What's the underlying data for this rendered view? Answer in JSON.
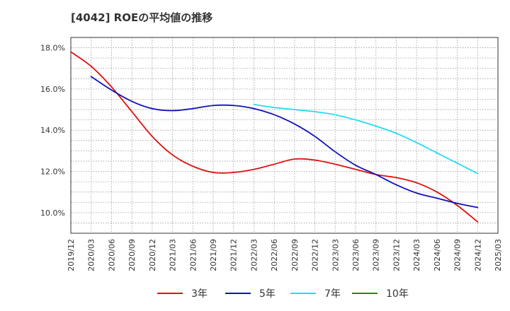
{
  "chart_data": {
    "type": "line",
    "title": "[4042]  ROEの平均値の推移",
    "xlabel": "",
    "ylabel": "",
    "ylim": [
      9.0,
      18.5
    ],
    "y_ticks": [
      10.0,
      12.0,
      14.0,
      16.0,
      18.0
    ],
    "y_tick_labels": [
      "10.0%",
      "12.0%",
      "14.0%",
      "16.0%",
      "18.0%"
    ],
    "x_tick_labels": [
      "2019/12",
      "2020/03",
      "2020/06",
      "2020/09",
      "2020/12",
      "2021/03",
      "2021/06",
      "2021/09",
      "2021/12",
      "2022/03",
      "2022/06",
      "2022/09",
      "2022/12",
      "2023/03",
      "2023/06",
      "2023/09",
      "2023/12",
      "2024/03",
      "2024/06",
      "2024/09",
      "2024/12",
      "2025/03"
    ],
    "grid": true,
    "legend_position": "bottom",
    "series": [
      {
        "name": "3年",
        "color": "#dd1111",
        "values": [
          17.8,
          17.1,
          16.1,
          14.9,
          13.7,
          12.8,
          12.25,
          11.95,
          11.95,
          12.1,
          12.35,
          12.6,
          12.55,
          12.35,
          12.1,
          11.85,
          11.7,
          11.45,
          11.0,
          10.35,
          9.55,
          null
        ]
      },
      {
        "name": "5年",
        "color": "#1111bb",
        "values": [
          null,
          16.6,
          15.95,
          15.4,
          15.05,
          14.95,
          15.05,
          15.2,
          15.2,
          15.05,
          14.75,
          14.3,
          13.7,
          12.95,
          12.3,
          11.85,
          11.35,
          10.95,
          10.7,
          10.45,
          10.25,
          null
        ]
      },
      {
        "name": "7年",
        "color": "#22ddee",
        "values": [
          null,
          null,
          null,
          null,
          null,
          null,
          null,
          null,
          null,
          15.25,
          15.1,
          15.0,
          14.9,
          14.75,
          14.5,
          14.2,
          13.85,
          13.4,
          12.9,
          12.4,
          11.9,
          null
        ]
      },
      {
        "name": "10年",
        "color": "#228822",
        "values": []
      }
    ]
  }
}
